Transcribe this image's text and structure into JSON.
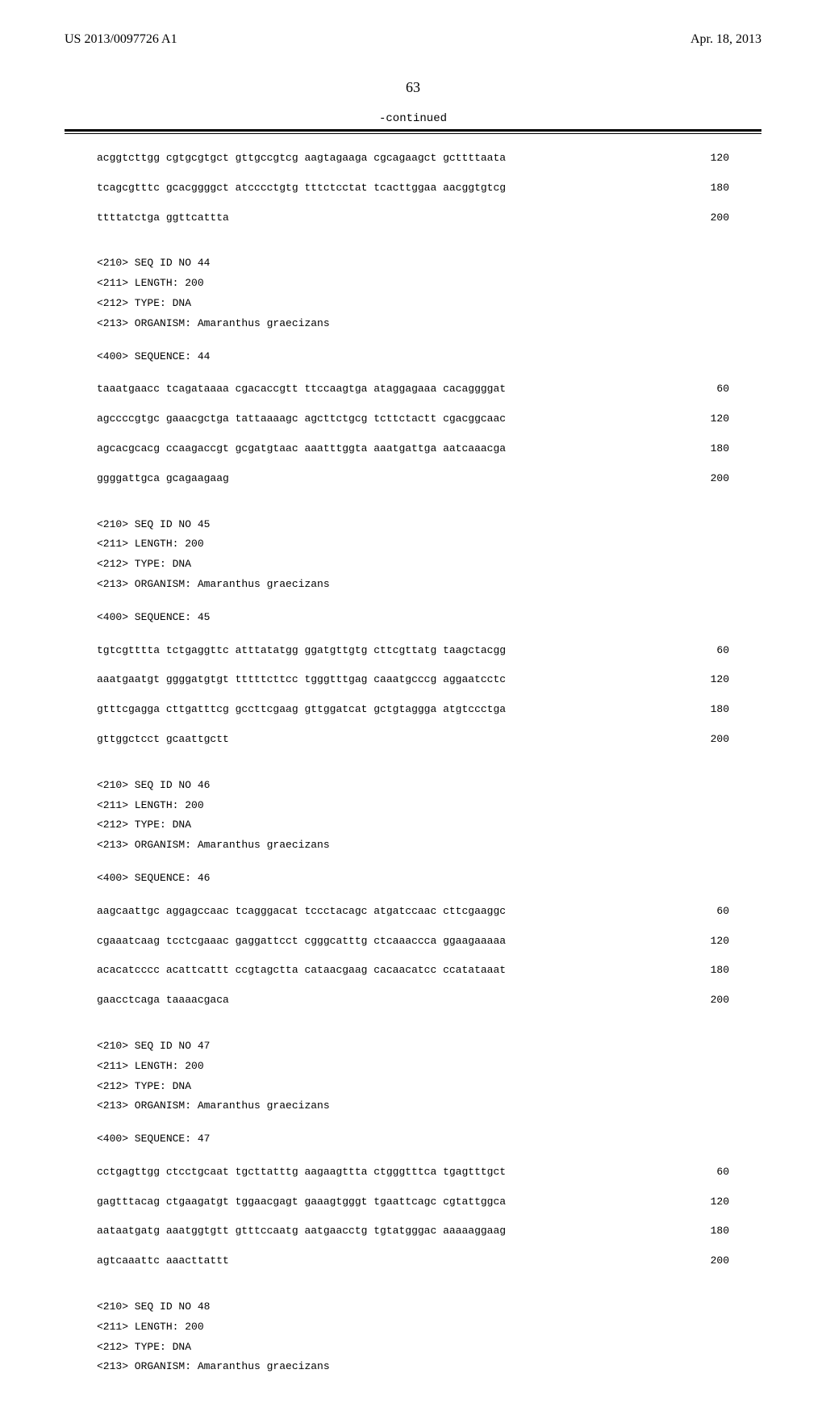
{
  "header": {
    "pub_number": "US 2013/0097726 A1",
    "pub_date": "Apr. 18, 2013"
  },
  "page_number": "63",
  "continued_label": "-continued",
  "sequences": [
    {
      "meta": [],
      "lines": [
        {
          "text": "acggtcttgg cgtgcgtgct gttgccgtcg aagtagaaga cgcagaagct gcttttaata",
          "pos": "120"
        },
        {
          "text": "tcagcgtttc gcacggggct atcccctgtg tttctcctat tcacttggaa aacggtgtcg",
          "pos": "180"
        },
        {
          "text": "ttttatctga ggttcattta",
          "pos": "200"
        }
      ]
    },
    {
      "meta": [
        "<210> SEQ ID NO 44",
        "<211> LENGTH: 200",
        "<212> TYPE: DNA",
        "<213> ORGANISM: Amaranthus graecizans"
      ],
      "sequence_label": "<400> SEQUENCE: 44",
      "lines": [
        {
          "text": "taaatgaacc tcagataaaa cgacaccgtt ttccaagtga ataggagaaa cacaggggat",
          "pos": " 60"
        },
        {
          "text": "agccccgtgc gaaacgctga tattaaaagc agcttctgcg tcttctactt cgacggcaac",
          "pos": "120"
        },
        {
          "text": "agcacgcacg ccaagaccgt gcgatgtaac aaatttggta aaatgattga aatcaaacga",
          "pos": "180"
        },
        {
          "text": "ggggattgca gcagaagaag",
          "pos": "200"
        }
      ]
    },
    {
      "meta": [
        "<210> SEQ ID NO 45",
        "<211> LENGTH: 200",
        "<212> TYPE: DNA",
        "<213> ORGANISM: Amaranthus graecizans"
      ],
      "sequence_label": "<400> SEQUENCE: 45",
      "lines": [
        {
          "text": "tgtcgtttta tctgaggttc atttatatgg ggatgttgtg cttcgttatg taagctacgg",
          "pos": " 60"
        },
        {
          "text": "aaatgaatgt ggggatgtgt tttttcttcc tgggtttgag caaatgcccg aggaatcctc",
          "pos": "120"
        },
        {
          "text": "gtttcgagga cttgatttcg gccttcgaag gttggatcat gctgtaggga atgtccctga",
          "pos": "180"
        },
        {
          "text": "gttggctcct gcaattgctt",
          "pos": "200"
        }
      ]
    },
    {
      "meta": [
        "<210> SEQ ID NO 46",
        "<211> LENGTH: 200",
        "<212> TYPE: DNA",
        "<213> ORGANISM: Amaranthus graecizans"
      ],
      "sequence_label": "<400> SEQUENCE: 46",
      "lines": [
        {
          "text": "aagcaattgc aggagccaac tcagggacat tccctacagc atgatccaac cttcgaaggc",
          "pos": " 60"
        },
        {
          "text": "cgaaatcaag tcctcgaaac gaggattcct cgggcatttg ctcaaaccca ggaagaaaaa",
          "pos": "120"
        },
        {
          "text": "acacatcccc acattcattt ccgtagctta cataacgaag cacaacatcc ccatataaat",
          "pos": "180"
        },
        {
          "text": "gaacctcaga taaaacgaca",
          "pos": "200"
        }
      ]
    },
    {
      "meta": [
        "<210> SEQ ID NO 47",
        "<211> LENGTH: 200",
        "<212> TYPE: DNA",
        "<213> ORGANISM: Amaranthus graecizans"
      ],
      "sequence_label": "<400> SEQUENCE: 47",
      "lines": [
        {
          "text": "cctgagttgg ctcctgcaat tgcttatttg aagaagttta ctgggtttca tgagtttgct",
          "pos": " 60"
        },
        {
          "text": "gagtttacag ctgaagatgt tggaacgagt gaaagtgggt tgaattcagc cgtattggca",
          "pos": "120"
        },
        {
          "text": "aataatgatg aaatggtgtt gtttccaatg aatgaacctg tgtatgggac aaaaaggaag",
          "pos": "180"
        },
        {
          "text": "agtcaaattc aaacttattt",
          "pos": "200"
        }
      ]
    },
    {
      "meta": [
        "<210> SEQ ID NO 48",
        "<211> LENGTH: 200",
        "<212> TYPE: DNA",
        "<213> ORGANISM: Amaranthus graecizans"
      ],
      "sequence_label": null,
      "lines": []
    }
  ]
}
